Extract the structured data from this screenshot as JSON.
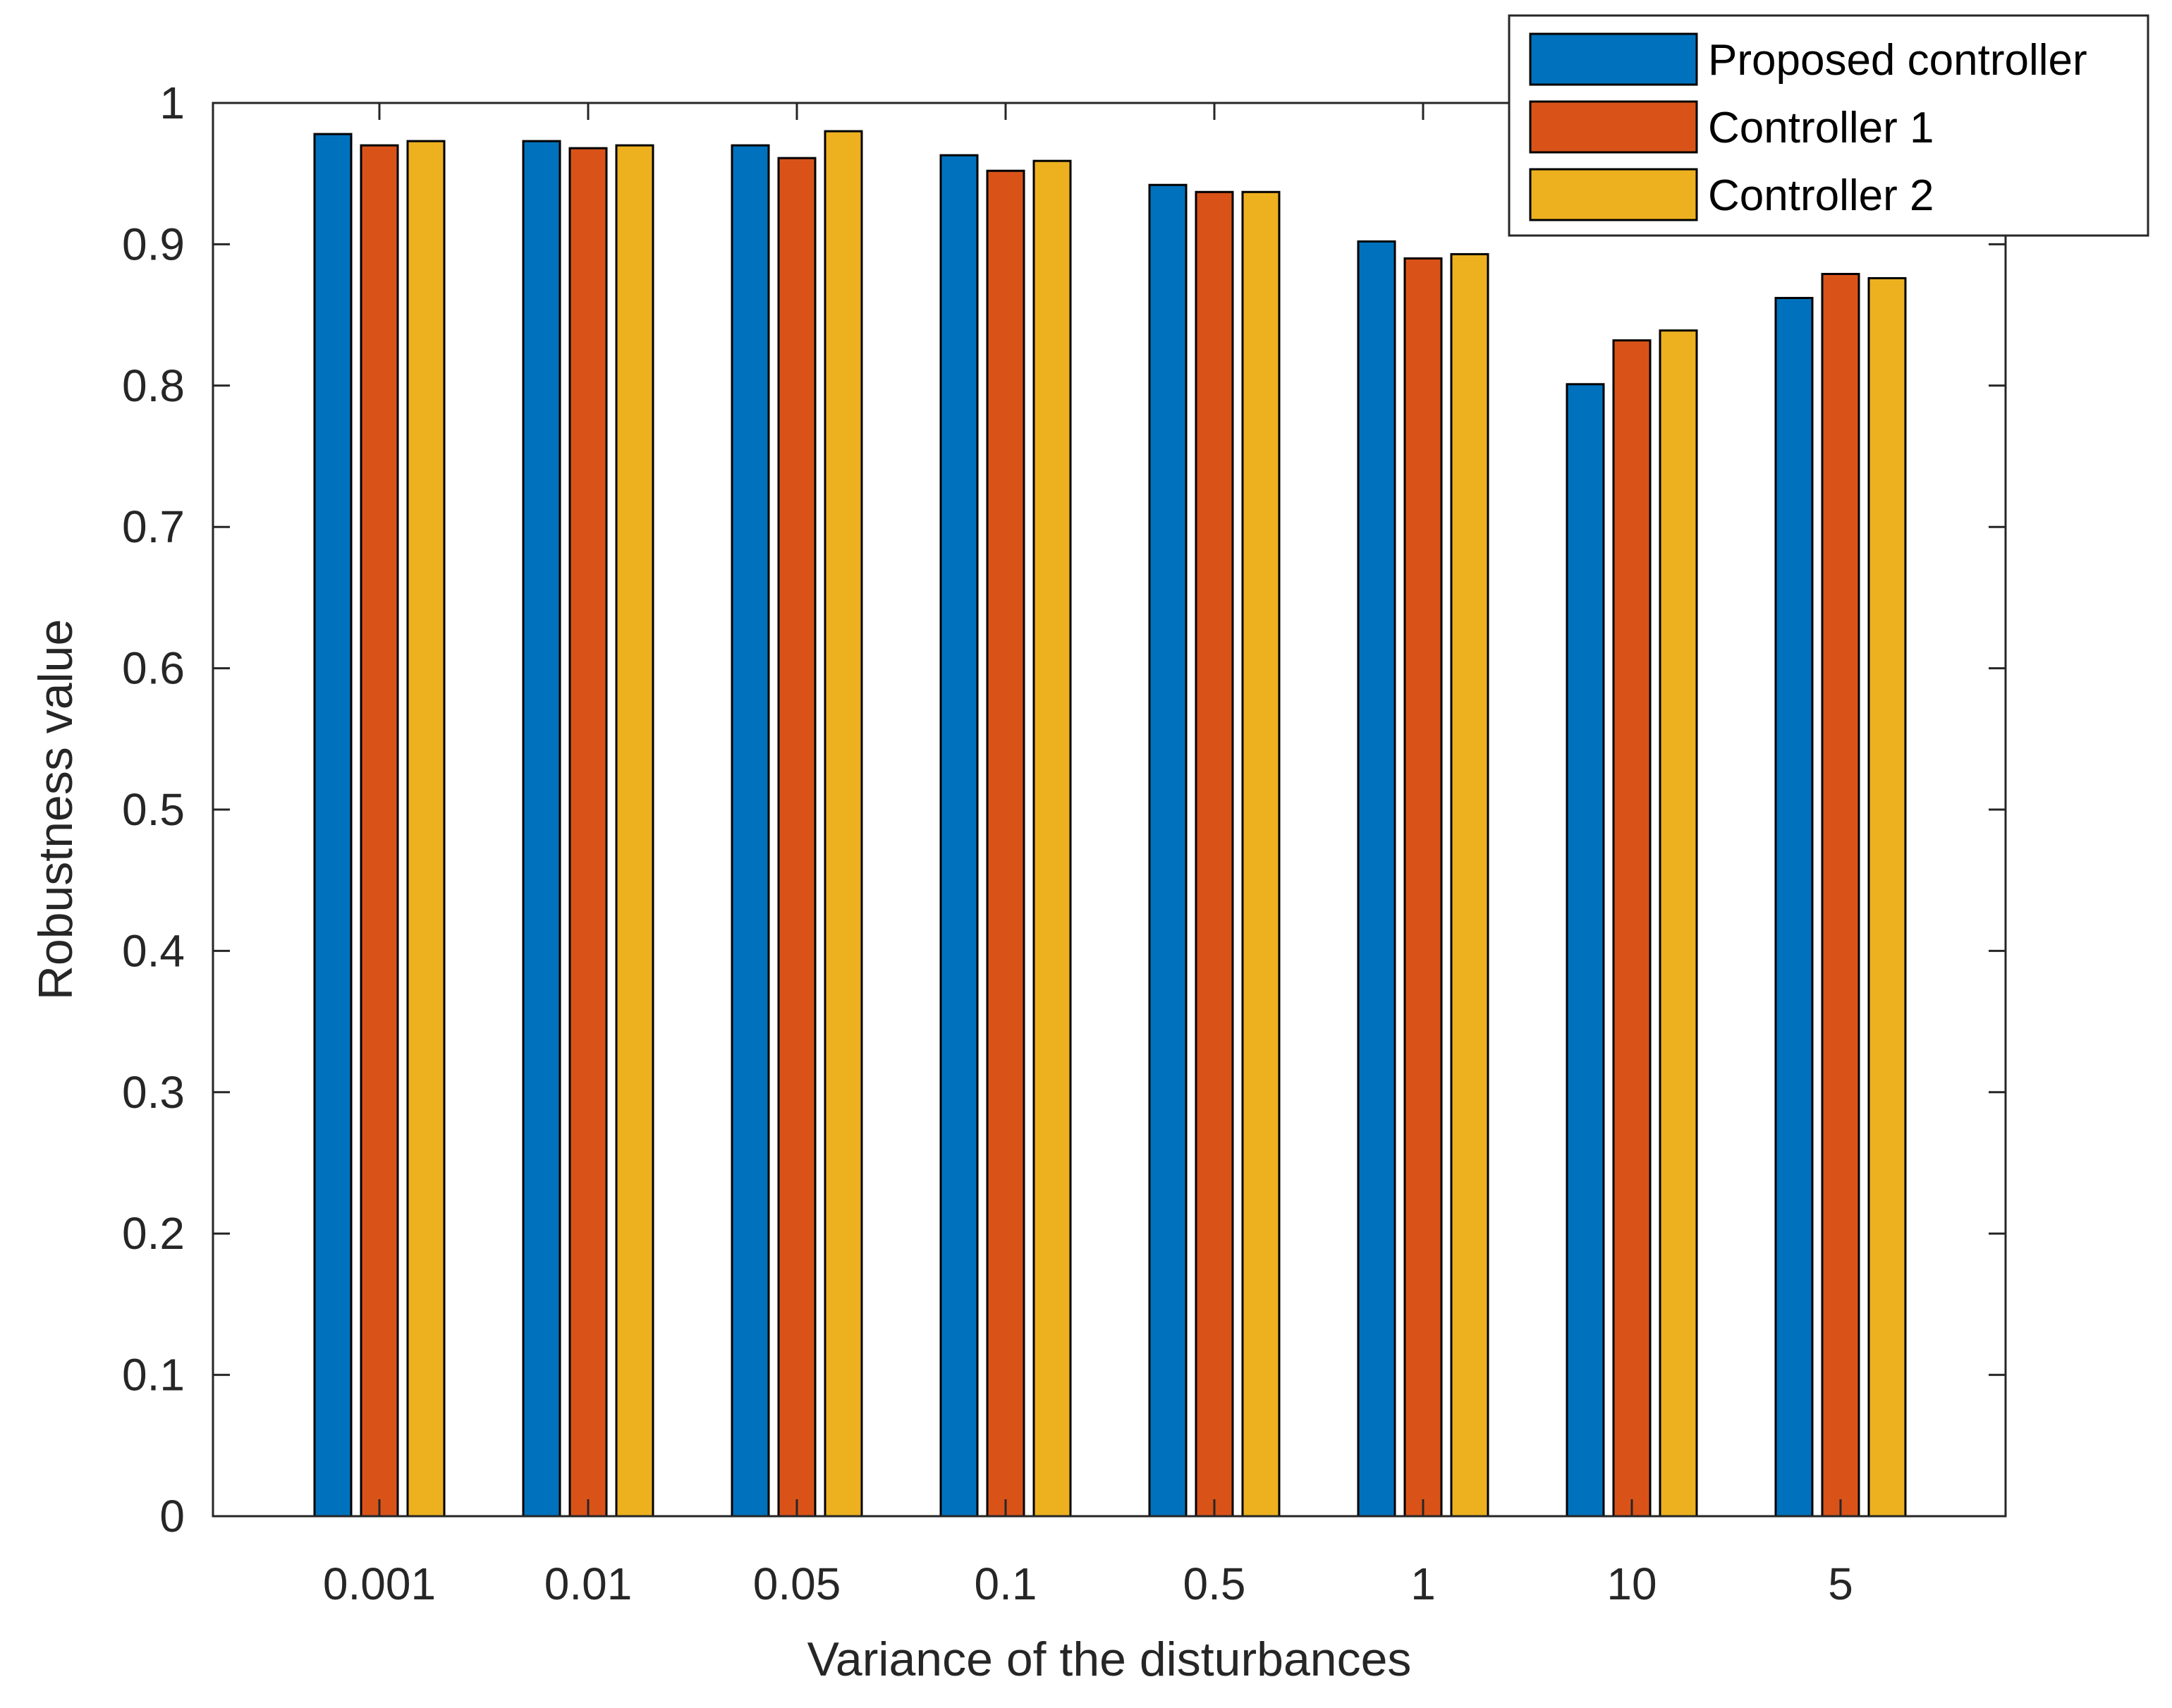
{
  "chart_data": {
    "type": "bar",
    "title": "",
    "xlabel": "Variance of the disturbances",
    "ylabel": "Robustness value",
    "ylim": [
      0,
      1
    ],
    "yticks": [
      "0",
      "0.1",
      "0.2",
      "0.3",
      "0.4",
      "0.5",
      "0.6",
      "0.7",
      "0.8",
      "0.9",
      "1"
    ],
    "categories": [
      "0.001",
      "0.01",
      "0.05",
      "0.1",
      "0.5",
      "1",
      "10",
      "5"
    ],
    "series": [
      {
        "name": "Proposed controller",
        "color": "#0072BD",
        "values": [
          0.978,
          0.973,
          0.97,
          0.963,
          0.942,
          0.902,
          0.801,
          0.862
        ]
      },
      {
        "name": "Controller 1",
        "color": "#D95319",
        "values": [
          0.97,
          0.968,
          0.961,
          0.952,
          0.937,
          0.89,
          0.832,
          0.879
        ]
      },
      {
        "name": "Controller 2",
        "color": "#EDB120",
        "values": [
          0.973,
          0.97,
          0.98,
          0.959,
          0.937,
          0.893,
          0.839,
          0.876
        ]
      }
    ],
    "legend": "top-right",
    "grid": false
  }
}
